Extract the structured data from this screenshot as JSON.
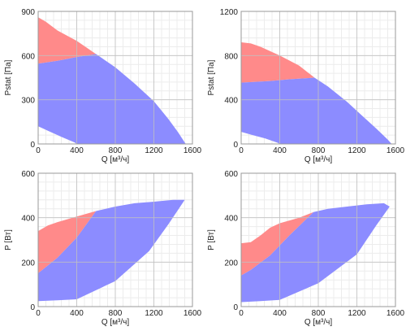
{
  "colors": {
    "red_region": "#ff8a8a",
    "blue_region": "#8c8cff",
    "grid_major": "#c0c0c0",
    "grid_minor": "#ececec",
    "frame": "#999999"
  },
  "chart_data": [
    {
      "type": "area",
      "xlabel": "Q [м³/ч]",
      "ylabel": "Pstat [Па]",
      "xlim": [
        0,
        1600
      ],
      "ylim": [
        0,
        900
      ],
      "xticks": [
        "0",
        "400",
        "800",
        "1200",
        "1600"
      ],
      "yticks": [
        "0",
        "300",
        "600",
        "900"
      ],
      "grid": true,
      "series": [
        {
          "color": "red",
          "polygon": [
            [
              0,
              860
            ],
            [
              80,
              830
            ],
            [
              200,
              770
            ],
            [
              400,
              700
            ],
            [
              600,
              610
            ],
            [
              400,
              590
            ],
            [
              200,
              565
            ],
            [
              0,
              545
            ]
          ]
        },
        {
          "color": "blue",
          "polygon": [
            [
              0,
              545
            ],
            [
              200,
              565
            ],
            [
              400,
              590
            ],
            [
              600,
              610
            ],
            [
              800,
              520
            ],
            [
              1000,
              410
            ],
            [
              1200,
              290
            ],
            [
              1350,
              170
            ],
            [
              1450,
              80
            ],
            [
              1530,
              0
            ],
            [
              1480,
              0
            ],
            [
              1200,
              0
            ],
            [
              800,
              0
            ],
            [
              400,
              0
            ],
            [
              380,
              10
            ],
            [
              250,
              45
            ],
            [
              100,
              90
            ],
            [
              0,
              120
            ]
          ]
        }
      ]
    },
    {
      "type": "area",
      "xlabel": "Q [м³/ч]",
      "ylabel": "Pstat [Па]",
      "xlim": [
        0,
        1600
      ],
      "ylim": [
        0,
        1200
      ],
      "xticks": [
        "0",
        "400",
        "800",
        "1200",
        "1600"
      ],
      "yticks": [
        "0",
        "400",
        "800",
        "1200"
      ],
      "grid": true,
      "series": [
        {
          "color": "red",
          "polygon": [
            [
              0,
              920
            ],
            [
              100,
              910
            ],
            [
              200,
              880
            ],
            [
              400,
              800
            ],
            [
              600,
              710
            ],
            [
              760,
              600
            ],
            [
              500,
              585
            ],
            [
              300,
              570
            ],
            [
              0,
              555
            ]
          ]
        },
        {
          "color": "blue",
          "polygon": [
            [
              0,
              555
            ],
            [
              300,
              570
            ],
            [
              500,
              585
            ],
            [
              760,
              600
            ],
            [
              900,
              520
            ],
            [
              1100,
              380
            ],
            [
              1250,
              260
            ],
            [
              1400,
              140
            ],
            [
              1520,
              40
            ],
            [
              1560,
              0
            ],
            [
              1200,
              0
            ],
            [
              800,
              0
            ],
            [
              400,
              0
            ],
            [
              380,
              10
            ],
            [
              250,
              50
            ],
            [
              100,
              85
            ],
            [
              0,
              110
            ]
          ]
        }
      ]
    },
    {
      "type": "area",
      "xlabel": "Q [м³/ч]",
      "ylabel": "P [Вт]",
      "xlim": [
        0,
        1600
      ],
      "ylim": [
        0,
        600
      ],
      "xticks": [
        "0",
        "400",
        "800",
        "1200",
        "1600"
      ],
      "yticks": [
        "0",
        "200",
        "400",
        "600"
      ],
      "grid": true,
      "series": [
        {
          "color": "red",
          "polygon": [
            [
              0,
              340
            ],
            [
              100,
              365
            ],
            [
              200,
              380
            ],
            [
              400,
              405
            ],
            [
              600,
              430
            ],
            [
              400,
              310
            ],
            [
              200,
              220
            ],
            [
              0,
              150
            ]
          ]
        },
        {
          "color": "blue",
          "polygon": [
            [
              0,
              150
            ],
            [
              200,
              220
            ],
            [
              400,
              310
            ],
            [
              600,
              430
            ],
            [
              800,
              450
            ],
            [
              1000,
              465
            ],
            [
              1200,
              472
            ],
            [
              1400,
              480
            ],
            [
              1520,
              480
            ],
            [
              1350,
              370
            ],
            [
              1150,
              250
            ],
            [
              800,
              115
            ],
            [
              400,
              33
            ],
            [
              200,
              28
            ],
            [
              0,
              25
            ]
          ]
        }
      ]
    },
    {
      "type": "area",
      "xlabel": "Q [м³/ч]",
      "ylabel": "P [Вт]",
      "xlim": [
        0,
        1600
      ],
      "ylim": [
        0,
        600
      ],
      "xticks": [
        "0",
        "400",
        "800",
        "1200",
        "1600"
      ],
      "yticks": [
        "0",
        "200",
        "400",
        "600"
      ],
      "grid": true,
      "series": [
        {
          "color": "red",
          "polygon": [
            [
              0,
              285
            ],
            [
              100,
              290
            ],
            [
              200,
              320
            ],
            [
              300,
              355
            ],
            [
              400,
              375
            ],
            [
              600,
              400
            ],
            [
              750,
              425
            ],
            [
              500,
              320
            ],
            [
              300,
              230
            ],
            [
              100,
              165
            ],
            [
              0,
              140
            ]
          ]
        },
        {
          "color": "blue",
          "polygon": [
            [
              0,
              140
            ],
            [
              100,
              165
            ],
            [
              300,
              230
            ],
            [
              500,
              320
            ],
            [
              750,
              425
            ],
            [
              900,
              440
            ],
            [
              1100,
              450
            ],
            [
              1300,
              460
            ],
            [
              1480,
              465
            ],
            [
              1540,
              450
            ],
            [
              1400,
              365
            ],
            [
              1200,
              235
            ],
            [
              800,
              105
            ],
            [
              400,
              30
            ],
            [
              200,
              25
            ],
            [
              0,
              20
            ]
          ]
        }
      ]
    }
  ]
}
